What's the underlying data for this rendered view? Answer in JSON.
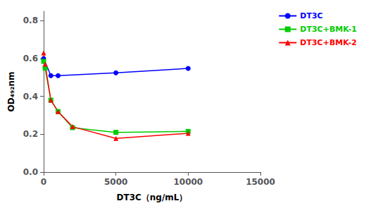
{
  "chart_data": {
    "type": "line",
    "xlabel": "DT3C（ng/mL）",
    "ylabel": "OD₄₉₂nm",
    "xlim": [
      0,
      15000
    ],
    "ylim": [
      0.0,
      0.85
    ],
    "xticks": [
      0,
      5000,
      10000,
      15000
    ],
    "yticks": [
      {
        "value": 0,
        "label": "0.0"
      },
      0.2,
      0.4,
      0.6,
      0.8
    ],
    "grid": false,
    "legend": "right",
    "series": [
      {
        "name": "DT3C",
        "color": "#0000FF",
        "marker": "circle",
        "x": [
          0,
          500,
          1000,
          5000,
          10000
        ],
        "values": [
          0.6,
          0.51,
          0.51,
          0.525,
          0.548
        ]
      },
      {
        "name": "DT3C+BMK-1",
        "color": "#00CC00",
        "marker": "square",
        "x": [
          0,
          100,
          500,
          1000,
          2000,
          5000,
          10000
        ],
        "values": [
          0.585,
          0.55,
          0.38,
          0.32,
          0.235,
          0.21,
          0.215
        ]
      },
      {
        "name": "DT3C+BMK-2",
        "color": "#FF0000",
        "marker": "triangle",
        "x": [
          0,
          100,
          500,
          1000,
          2000,
          5000,
          10000
        ],
        "values": [
          0.63,
          0.57,
          0.38,
          0.32,
          0.24,
          0.178,
          0.205
        ]
      }
    ]
  }
}
